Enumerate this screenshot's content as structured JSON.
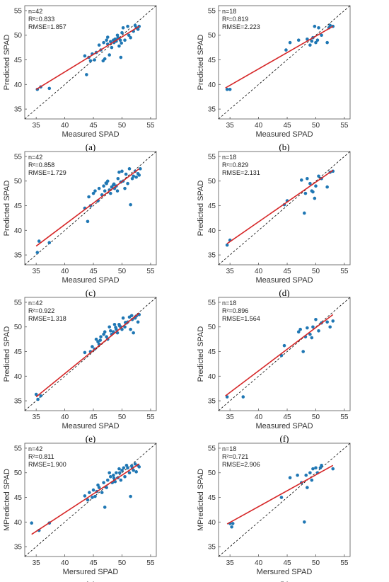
{
  "style": {
    "point_color": "#1f77b4",
    "fit_line_color": "#d62728",
    "identity_line_color": "#000000",
    "frame_color": "#555555"
  },
  "chart_data": [
    {
      "type": "scatter",
      "caption": "(a)",
      "stats": [
        "n=42",
        "R²=0.833",
        "RMSE=1.857"
      ],
      "xlabel": "Measured SPAD",
      "ylabel": "Predicted SPAD",
      "xlim": [
        33,
        56
      ],
      "ylim": [
        33,
        56
      ],
      "xticks": [
        35,
        40,
        45,
        50,
        55
      ],
      "yticks": [
        35,
        40,
        45,
        50,
        55
      ],
      "identity_line": true,
      "fit_line": {
        "x": [
          35,
          53
        ],
        "y": [
          39.0,
          51.8
        ]
      },
      "series": [
        {
          "x": [
            35.2,
            35.8,
            37.3,
            43.5,
            43.8,
            44.2,
            44.5,
            44.8,
            45.2,
            45.5,
            46.0,
            46.3,
            46.8,
            47.0,
            47.3,
            47.5,
            47.8,
            48.0,
            48.2,
            48.5,
            48.6,
            48.8,
            49.0,
            49.2,
            49.3,
            49.5,
            49.7,
            49.8,
            50.0,
            50.2,
            50.5,
            51.0,
            51.2,
            51.5,
            52.0,
            52.3,
            52.5,
            52.8,
            53.0,
            47.5,
            46.7,
            49.9
          ],
          "y": [
            39.0,
            39.5,
            39.2,
            45.8,
            42.0,
            45.5,
            44.8,
            46.2,
            45.0,
            46.5,
            48.0,
            47.0,
            48.5,
            45.2,
            49.0,
            48.2,
            46.0,
            48.7,
            47.5,
            49.0,
            48.5,
            49.2,
            48.8,
            50.0,
            49.5,
            47.8,
            49.0,
            45.5,
            50.5,
            51.5,
            49.0,
            51.8,
            50.0,
            49.5,
            50.8,
            52.0,
            51.5,
            51.2,
            51.8,
            49.6,
            44.8,
            48.4
          ]
        }
      ]
    },
    {
      "type": "scatter",
      "caption": "(b)",
      "stats": [
        "n=18",
        "R²=0.819",
        "RMSE=2.223"
      ],
      "xlabel": "Measured SPAD",
      "ylabel": "Predicted SPAD",
      "xlim": [
        33,
        56
      ],
      "ylim": [
        33,
        56
      ],
      "xticks": [
        35,
        40,
        45,
        50,
        55
      ],
      "yticks": [
        35,
        40,
        45,
        50,
        55
      ],
      "identity_line": true,
      "fit_line": {
        "x": [
          34.2,
          53
        ],
        "y": [
          39.3,
          51.8
        ]
      },
      "series": [
        {
          "x": [
            34.5,
            35.0,
            44.8,
            45.5,
            47.0,
            48.5,
            49.0,
            49.3,
            49.5,
            49.8,
            50.0,
            50.3,
            50.5,
            51.0,
            52.0,
            52.3,
            52.5,
            53.0
          ],
          "y": [
            39.0,
            39.0,
            47.0,
            48.5,
            49.0,
            49.2,
            48.0,
            48.8,
            49.5,
            51.8,
            48.5,
            49.0,
            51.5,
            50.0,
            48.5,
            51.5,
            52.0,
            51.8
          ]
        }
      ]
    },
    {
      "type": "scatter",
      "caption": "(c)",
      "stats": [
        "n=42",
        "R²=0.858",
        "RMSE=1.729"
      ],
      "xlabel": "Measured SPAD",
      "ylabel": "Predicted SPAD",
      "xlim": [
        33,
        56
      ],
      "ylim": [
        33,
        56
      ],
      "xticks": [
        35,
        40,
        45,
        50,
        55
      ],
      "yticks": [
        35,
        40,
        45,
        50,
        55
      ],
      "identity_line": true,
      "fit_line": {
        "x": [
          35,
          53
        ],
        "y": [
          36.8,
          52.5
        ]
      },
      "series": [
        {
          "x": [
            35.2,
            35.5,
            37.3,
            43.5,
            44.0,
            44.2,
            44.5,
            45.0,
            45.3,
            45.8,
            46.0,
            46.5,
            46.8,
            47.0,
            47.3,
            47.5,
            47.8,
            48.0,
            48.2,
            48.5,
            48.7,
            49.0,
            49.2,
            49.3,
            49.5,
            49.8,
            50.0,
            50.2,
            50.5,
            51.0,
            51.3,
            51.5,
            51.8,
            52.0,
            52.3,
            52.5,
            52.8,
            53.0,
            53.2,
            47.2,
            48.6,
            50.7
          ],
          "y": [
            35.5,
            37.8,
            37.5,
            44.5,
            41.8,
            46.8,
            45.0,
            47.5,
            48.0,
            46.0,
            48.5,
            47.2,
            49.0,
            48.0,
            49.5,
            50.0,
            48.2,
            47.5,
            48.8,
            49.2,
            48.5,
            49.0,
            48.0,
            50.5,
            51.8,
            49.8,
            52.0,
            50.0,
            48.5,
            49.5,
            52.5,
            45.2,
            50.5,
            51.0,
            52.0,
            50.8,
            51.5,
            51.2,
            52.5,
            49.6,
            49.4,
            51.4
          ]
        }
      ]
    },
    {
      "type": "scatter",
      "caption": "(d)",
      "stats": [
        "n=18",
        "R²=0.829",
        "RMSE=2.131"
      ],
      "xlabel": "Measured SPAD",
      "ylabel": "Predicted SPAD",
      "xlim": [
        33,
        56
      ],
      "ylim": [
        33,
        56
      ],
      "xticks": [
        35,
        40,
        45,
        50,
        55
      ],
      "yticks": [
        35,
        40,
        45,
        50,
        55
      ],
      "identity_line": true,
      "fit_line": {
        "x": [
          34.5,
          53
        ],
        "y": [
          37.3,
          52.2
        ]
      },
      "series": [
        {
          "x": [
            34.5,
            35.0,
            44.5,
            45.0,
            47.5,
            48.0,
            48.2,
            48.5,
            49.0,
            49.3,
            49.5,
            49.8,
            50.0,
            50.5,
            51.0,
            52.0,
            52.5,
            53.0
          ],
          "y": [
            37.0,
            38.0,
            45.2,
            46.0,
            50.2,
            43.5,
            47.5,
            50.5,
            49.5,
            48.0,
            47.8,
            46.5,
            49.0,
            51.0,
            50.5,
            48.8,
            51.8,
            52.0
          ]
        }
      ]
    },
    {
      "type": "scatter",
      "caption": "(e)",
      "stats": [
        "n=42",
        "R²=0.922",
        "RMSE=1.318"
      ],
      "xlabel": "Measured SPAD",
      "ylabel": "Predicted SPAD",
      "xlim": [
        33,
        56
      ],
      "ylim": [
        33,
        56
      ],
      "xticks": [
        35,
        40,
        45,
        50,
        55
      ],
      "yticks": [
        35,
        40,
        45,
        50,
        55
      ],
      "identity_line": true,
      "fit_line": {
        "x": [
          35,
          53
        ],
        "y": [
          35.8,
          52.8
        ]
      },
      "series": [
        {
          "x": [
            35.0,
            35.3,
            35.8,
            43.5,
            44.5,
            44.8,
            45.2,
            45.5,
            45.8,
            46.0,
            46.3,
            46.8,
            47.0,
            47.3,
            47.5,
            47.8,
            48.0,
            48.2,
            48.5,
            48.7,
            49.0,
            49.2,
            49.5,
            49.8,
            50.0,
            50.2,
            50.5,
            50.8,
            51.0,
            51.3,
            51.5,
            51.8,
            52.0,
            52.3,
            52.5,
            52.8,
            53.0,
            46.2,
            48.9,
            49.6,
            50.6,
            51.7
          ],
          "y": [
            36.3,
            35.3,
            36.0,
            44.8,
            45.0,
            46.0,
            45.5,
            47.5,
            47.0,
            46.5,
            48.0,
            48.5,
            49.0,
            48.0,
            47.5,
            50.0,
            49.2,
            48.5,
            49.0,
            50.5,
            49.5,
            48.8,
            50.5,
            50.0,
            49.5,
            51.8,
            50.0,
            50.8,
            51.0,
            52.0,
            49.5,
            51.5,
            48.8,
            51.8,
            52.2,
            51.0,
            52.5,
            47.3,
            49.9,
            50.2,
            50.9,
            52.3
          ]
        }
      ]
    },
    {
      "type": "scatter",
      "caption": "(f)",
      "stats": [
        "n=18",
        "R²=0.896",
        "RMSE=1.564"
      ],
      "xlabel": "Measured SPAD",
      "ylabel": "Predicted SPAD",
      "xlim": [
        33,
        56
      ],
      "ylim": [
        33,
        56
      ],
      "xticks": [
        35,
        40,
        45,
        50,
        55
      ],
      "yticks": [
        35,
        40,
        45,
        50,
        55
      ],
      "identity_line": true,
      "fit_line": {
        "x": [
          34.2,
          53
        ],
        "y": [
          36.0,
          52.5
        ]
      },
      "series": [
        {
          "x": [
            34.5,
            37.3,
            44.0,
            44.5,
            47.0,
            47.3,
            47.8,
            48.2,
            48.5,
            49.0,
            49.3,
            49.5,
            50.0,
            50.5,
            51.0,
            52.0,
            52.5,
            53.0
          ],
          "y": [
            35.8,
            35.8,
            44.2,
            46.2,
            49.0,
            49.5,
            45.0,
            48.0,
            49.8,
            48.5,
            47.8,
            50.0,
            51.5,
            49.2,
            50.8,
            51.0,
            50.0,
            51.2
          ]
        }
      ]
    },
    {
      "type": "scatter",
      "caption": "(g)",
      "stats": [
        "n=42",
        "R²=0.811",
        "RMSE=1.900"
      ],
      "xlabel": "Mersured SPAD",
      "ylabel": "MPredicted SPAD",
      "xlim": [
        33,
        56
      ],
      "ylim": [
        33,
        56
      ],
      "xticks": [
        35,
        40,
        45,
        50,
        55
      ],
      "yticks": [
        35,
        40,
        45,
        50,
        55
      ],
      "identity_line": true,
      "fit_line": {
        "x": [
          34.2,
          53
        ],
        "y": [
          37.5,
          51.8
        ]
      },
      "series": [
        {
          "x": [
            34.2,
            35.5,
            37.3,
            43.5,
            44.0,
            44.3,
            44.8,
            45.0,
            45.3,
            45.8,
            46.0,
            46.5,
            46.8,
            47.0,
            47.3,
            47.5,
            47.8,
            48.0,
            48.3,
            48.5,
            48.8,
            49.0,
            49.3,
            49.5,
            49.8,
            50.0,
            50.3,
            50.5,
            50.8,
            51.0,
            51.3,
            51.5,
            51.8,
            52.0,
            52.3,
            52.5,
            52.8,
            53.0,
            45.6,
            48.6,
            49.6,
            51.7
          ],
          "y": [
            39.8,
            38.3,
            39.8,
            45.3,
            44.5,
            46.0,
            45.0,
            46.5,
            45.2,
            47.5,
            47.0,
            46.0,
            48.0,
            43.0,
            47.0,
            48.5,
            50.0,
            49.2,
            48.0,
            49.5,
            48.2,
            50.0,
            49.0,
            50.8,
            48.5,
            50.5,
            51.0,
            49.2,
            51.5,
            51.0,
            50.0,
            45.2,
            51.0,
            50.5,
            51.8,
            50.2,
            51.5,
            51.2,
            46.2,
            48.9,
            50.0,
            51.4
          ]
        }
      ]
    },
    {
      "type": "scatter",
      "caption": "(h)",
      "stats": [
        "n=18",
        "R²=0.721",
        "RMSE=2.906"
      ],
      "xlabel": "Mersured SPAD",
      "ylabel": "MPredicted SPAD",
      "xlim": [
        33,
        56
      ],
      "ylim": [
        33,
        56
      ],
      "xticks": [
        35,
        40,
        45,
        50,
        55
      ],
      "yticks": [
        35,
        40,
        45,
        50,
        55
      ],
      "identity_line": true,
      "fit_line": {
        "x": [
          34.5,
          53
        ],
        "y": [
          39.6,
          51.5
        ]
      },
      "series": [
        {
          "x": [
            35.0,
            35.3,
            35.5,
            44.0,
            45.5,
            46.8,
            47.5,
            48.0,
            48.3,
            48.5,
            49.0,
            49.3,
            49.5,
            50.0,
            50.3,
            50.8,
            51.0,
            53.0
          ],
          "y": [
            39.7,
            39.0,
            39.7,
            45.0,
            49.0,
            49.5,
            48.0,
            40.0,
            49.5,
            47.0,
            50.0,
            48.5,
            50.8,
            51.0,
            50.0,
            51.0,
            51.5,
            50.8
          ]
        }
      ]
    }
  ]
}
